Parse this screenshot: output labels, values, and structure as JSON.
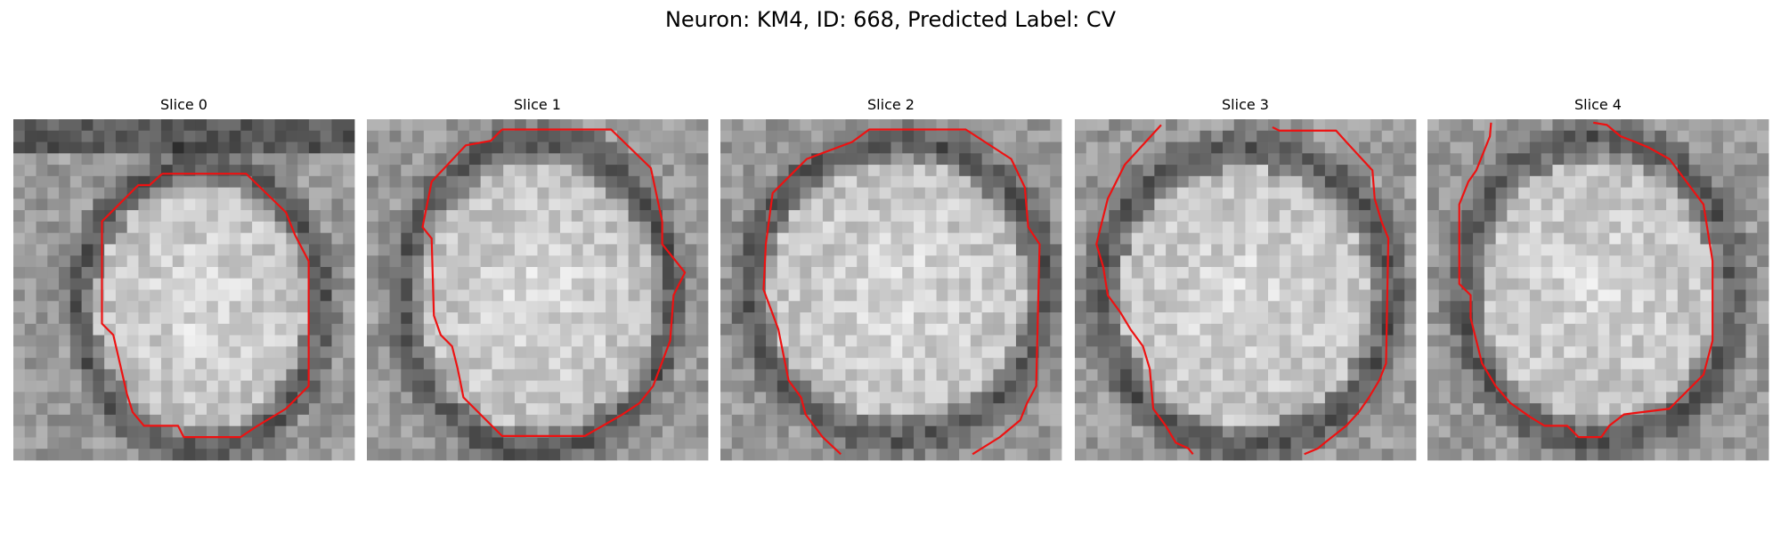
{
  "title": "Neuron: KM4, ID: 668, Predicted Label: CV",
  "panels": [
    {
      "title": "Slice 0"
    },
    {
      "title": "Slice 1"
    },
    {
      "title": "Slice 2"
    },
    {
      "title": "Slice 3"
    },
    {
      "title": "Slice 4"
    }
  ]
}
